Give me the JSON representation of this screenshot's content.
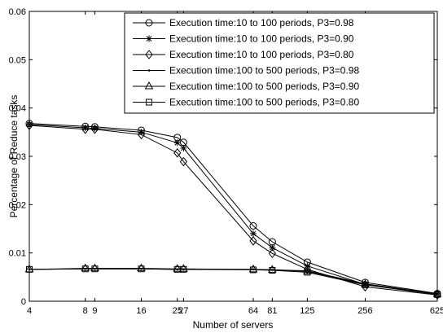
{
  "chart_data": {
    "type": "line",
    "xlabel": "Number of servers",
    "ylabel": "Percentage of Reduce tasks",
    "x_scale": "log",
    "xlim": [
      4,
      625
    ],
    "ylim": [
      0,
      0.06
    ],
    "x_ticks": [
      4,
      8,
      9,
      16,
      25,
      27,
      64,
      81,
      125,
      256,
      625
    ],
    "x_tick_labels": [
      "4",
      "8",
      "9",
      "16",
      "25",
      "27",
      "64",
      "81",
      "125",
      "256",
      "625"
    ],
    "y_ticks": [
      0,
      0.01,
      0.02,
      0.03,
      0.04,
      0.05,
      0.06
    ],
    "y_tick_labels": [
      "0",
      "0.01",
      "0.02",
      "0.03",
      "0.04",
      "0.05",
      "0.06"
    ],
    "grid": false,
    "legend_position": "top-right",
    "x": [
      4,
      8,
      9,
      16,
      25,
      27,
      64,
      81,
      125,
      256,
      625
    ],
    "series": [
      {
        "name": "Execution time:10 to 100 periods, P3=0.98",
        "marker": "circle",
        "values": [
          0.0368,
          0.0362,
          0.0361,
          0.0354,
          0.0339,
          0.0329,
          0.0156,
          0.0123,
          0.0081,
          0.0039,
          0.0016
        ]
      },
      {
        "name": "Execution time:10 to 100 periods, P3=0.90",
        "marker": "star",
        "values": [
          0.0366,
          0.0359,
          0.0358,
          0.035,
          0.0328,
          0.0317,
          0.014,
          0.0111,
          0.0073,
          0.0035,
          0.0015
        ]
      },
      {
        "name": "Execution time:10 to 100 periods, P3=0.80",
        "marker": "diamond",
        "values": [
          0.0364,
          0.0356,
          0.0356,
          0.0345,
          0.0307,
          0.0289,
          0.0125,
          0.0099,
          0.0066,
          0.003,
          0.0013
        ]
      },
      {
        "name": "Execution time:100 to 500 periods, P3=0.98",
        "marker": "dot",
        "values": [
          0.0066,
          0.0067,
          0.0067,
          0.0067,
          0.0066,
          0.0066,
          0.0066,
          0.0065,
          0.0063,
          0.0036,
          0.0015
        ]
      },
      {
        "name": "Execution time:100 to 500 periods, P3=0.90",
        "marker": "triangle",
        "values": [
          0.0066,
          0.0068,
          0.0068,
          0.0068,
          0.0067,
          0.0067,
          0.0066,
          0.0065,
          0.0062,
          0.0035,
          0.0015
        ]
      },
      {
        "name": "Execution time:100 to 500 periods, P3=0.80",
        "marker": "square",
        "values": [
          0.0066,
          0.0067,
          0.0067,
          0.0067,
          0.0066,
          0.0066,
          0.0065,
          0.0064,
          0.006,
          0.0034,
          0.0014
        ]
      }
    ]
  }
}
